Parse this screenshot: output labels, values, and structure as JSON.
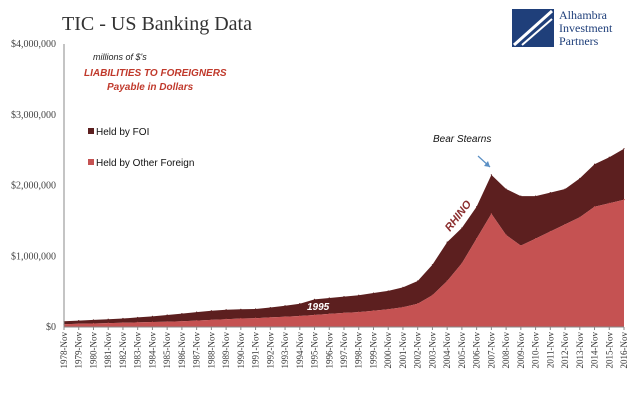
{
  "title": "TIC - US Banking Data",
  "logo": {
    "line1": "Alhambra",
    "line2": "Investment",
    "line3": "Partners"
  },
  "notes": {
    "units": "millions of $'s",
    "subtitle_line1": "LIABILITIES TO FOREIGNERS",
    "subtitle_line2": "Payable in Dollars"
  },
  "annotations": {
    "bear_stearns": "Bear Stearns",
    "rhino": "RHINO",
    "year_1995": "1995"
  },
  "colors": {
    "foi": "#5c1f1f",
    "other": "#c55252",
    "accent": "#c0392b",
    "logo": "#1f3f7a",
    "arrow": "#5a8fc4"
  },
  "chart_data": {
    "type": "area",
    "stacked": true,
    "title": "TIC - US Banking Data",
    "xlabel": "",
    "ylabel": "",
    "ylim": [
      0,
      4000000
    ],
    "yticks": [
      "$0",
      "$1,000,000",
      "$2,000,000",
      "$3,000,000",
      "$4,000,000"
    ],
    "legend_position": "left",
    "grid": false,
    "x": [
      "1978-Nov",
      "1979-Nov",
      "1980-Nov",
      "1981-Nov",
      "1982-Nov",
      "1983-Nov",
      "1984-Nov",
      "1985-Nov",
      "1986-Nov",
      "1987-Nov",
      "1988-Nov",
      "1989-Nov",
      "1990-Nov",
      "1991-Nov",
      "1992-Nov",
      "1993-Nov",
      "1994-Nov",
      "1995-Nov",
      "1996-Nov",
      "1997-Nov",
      "1998-Nov",
      "1999-Nov",
      "2000-Nov",
      "2001-Nov",
      "2002-Nov",
      "2003-Nov",
      "2004-Nov",
      "2005-Nov",
      "2006-Nov",
      "2007-Nov",
      "2008-Nov",
      "2009-Nov",
      "2010-Nov",
      "2011-Nov",
      "2012-Nov",
      "2013-Nov",
      "2014-Nov",
      "2015-Nov",
      "2016-Nov"
    ],
    "series": [
      {
        "name": "Held by Other Foreign",
        "values": [
          40000,
          45000,
          50000,
          55000,
          60000,
          65000,
          70000,
          75000,
          80000,
          90000,
          100000,
          110000,
          120000,
          125000,
          135000,
          145000,
          155000,
          170000,
          185000,
          200000,
          210000,
          230000,
          250000,
          280000,
          330000,
          450000,
          650000,
          900000,
          1250000,
          1600000,
          1300000,
          1150000,
          1250000,
          1350000,
          1450000,
          1550000,
          1700000,
          1750000,
          1800000
        ]
      },
      {
        "name": "Held by FOI",
        "values": [
          40000,
          45000,
          50000,
          55000,
          60000,
          70000,
          80000,
          95000,
          110000,
          120000,
          130000,
          135000,
          130000,
          130000,
          140000,
          155000,
          175000,
          220000,
          225000,
          230000,
          240000,
          250000,
          260000,
          280000,
          320000,
          430000,
          550000,
          500000,
          450000,
          550000,
          650000,
          700000,
          600000,
          550000,
          500000,
          550000,
          600000,
          650000,
          720000
        ]
      }
    ]
  }
}
